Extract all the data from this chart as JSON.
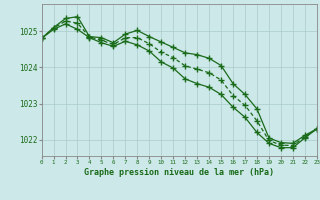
{
  "x": [
    0,
    1,
    2,
    3,
    4,
    5,
    6,
    7,
    8,
    9,
    10,
    11,
    12,
    13,
    14,
    15,
    16,
    17,
    18,
    19,
    20,
    21,
    22,
    23
  ],
  "line1": [
    1024.8,
    1025.1,
    1025.35,
    1025.4,
    1024.85,
    1024.82,
    1024.68,
    1024.92,
    1025.02,
    1024.85,
    1024.7,
    1024.55,
    1024.4,
    1024.35,
    1024.25,
    1024.05,
    1023.55,
    1023.25,
    1022.85,
    1022.05,
    1021.92,
    1021.9,
    1022.12,
    1022.3
  ],
  "line2": [
    1024.8,
    1025.05,
    1025.2,
    1025.05,
    1024.82,
    1024.68,
    1024.58,
    1024.72,
    1024.62,
    1024.45,
    1024.15,
    1023.98,
    1023.68,
    1023.55,
    1023.45,
    1023.25,
    1022.9,
    1022.62,
    1022.2,
    1021.9,
    1021.78,
    1021.78,
    1022.05,
    1022.3
  ],
  "line3": [
    1024.8,
    1025.08,
    1025.28,
    1025.22,
    1024.84,
    1024.75,
    1024.63,
    1024.82,
    1024.82,
    1024.65,
    1024.42,
    1024.27,
    1024.04,
    1023.95,
    1023.85,
    1023.65,
    1023.22,
    1022.95,
    1022.52,
    1021.98,
    1021.85,
    1021.84,
    1022.08,
    1022.3
  ],
  "line_color": "#1a6b1a",
  "bg_color": "#cce8e8",
  "grid_color": "#aacccc",
  "axis_color": "#1a6b1a",
  "xlabel": "Graphe pression niveau de la mer (hPa)",
  "ylim_min": 1021.55,
  "ylim_max": 1025.75,
  "yticks": [
    1022,
    1023,
    1024,
    1025
  ],
  "marker": "+",
  "markersize": 4,
  "linewidth": 0.9
}
